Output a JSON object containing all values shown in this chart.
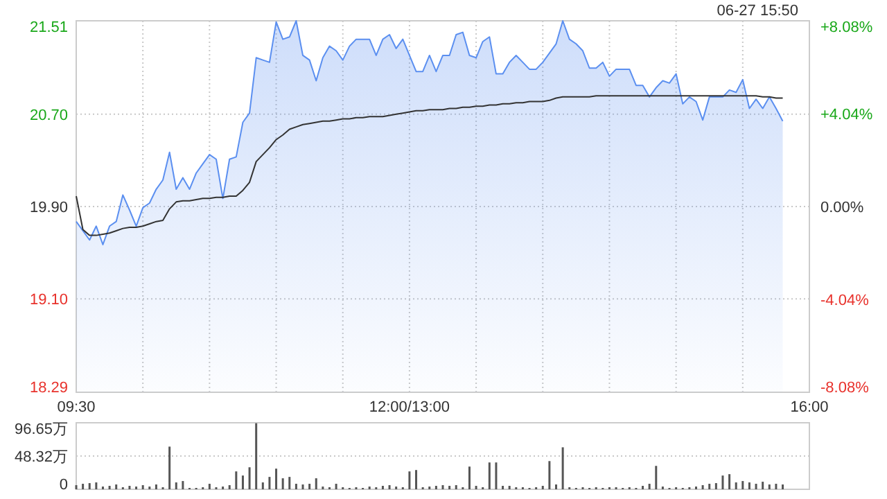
{
  "chart_data": [
    {
      "type": "area",
      "categories": [
        "09:30",
        null,
        null,
        null,
        null,
        null,
        null,
        null,
        null,
        null,
        null,
        null,
        null,
        null,
        null,
        null,
        null,
        null,
        null,
        null,
        null,
        null,
        null,
        null,
        null,
        null,
        null,
        null,
        null,
        null,
        null,
        null,
        null,
        null,
        null,
        null,
        null,
        null,
        null,
        null,
        null,
        null,
        null,
        null,
        null,
        null,
        null,
        null,
        null,
        null,
        "12:00/13:00",
        null,
        null,
        null,
        null,
        null,
        null,
        null,
        null,
        null,
        null,
        null,
        null,
        null,
        null,
        null,
        null,
        null,
        null,
        null,
        null,
        null,
        null,
        null,
        null,
        null,
        null,
        null,
        null,
        null,
        null,
        null,
        null,
        null,
        null,
        null,
        null,
        null,
        null,
        null,
        null,
        null,
        null,
        null,
        null,
        null,
        null,
        null,
        null,
        null,
        null,
        null,
        null,
        null,
        null,
        null,
        null,
        null,
        null,
        null,
        "16:00"
      ],
      "ylim": [
        18.29,
        21.51
      ],
      "yticks": [
        18.29,
        {
          "value": 19.1,
          "label": "19.10"
        },
        {
          "value": 19.9,
          "label": "19.90"
        },
        {
          "value": 20.7,
          "label": "20.70"
        },
        21.51
      ],
      "y2lim": [
        -8.08,
        8.08
      ],
      "y2ticks": [
        {
          "value": -8.08,
          "label": "-8.08%"
        },
        {
          "value": -4.04,
          "label": "-4.04%"
        },
        {
          "value": 0,
          "label": "0.00%"
        },
        {
          "value": 4.04,
          "label": "+4.04%"
        },
        {
          "value": 8.08,
          "label": "+8.08%"
        }
      ],
      "grid": true,
      "annotations": [
        "06-27 15:50"
      ],
      "series": [
        {
          "color": "#5b8ff0",
          "values": [
            19.77,
            19.69,
            19.61,
            19.73,
            19.57,
            19.73,
            19.77,
            20.0,
            19.87,
            19.73,
            19.89,
            19.93,
            20.05,
            20.13,
            20.37,
            20.05,
            20.15,
            20.05,
            20.19,
            20.27,
            20.35,
            20.31,
            19.97,
            20.31,
            20.33,
            20.63,
            20.71,
            21.19,
            21.17,
            21.15,
            21.5,
            21.35,
            21.37,
            21.51,
            21.21,
            21.17,
            20.99,
            21.19,
            21.29,
            21.25,
            21.17,
            21.29,
            21.35,
            21.35,
            21.35,
            21.21,
            21.35,
            21.39,
            21.27,
            21.35,
            21.21,
            21.07,
            21.07,
            21.21,
            21.07,
            21.21,
            21.21,
            21.39,
            21.41,
            21.21,
            21.19,
            21.33,
            21.37,
            21.05,
            21.05,
            21.15,
            21.21,
            21.15,
            21.09,
            21.09,
            21.15,
            21.23,
            21.31,
            21.51,
            21.35,
            21.31,
            21.25,
            21.1,
            21.1,
            21.15,
            21.03,
            21.09,
            21.09,
            21.09,
            20.95,
            20.95,
            20.85,
            20.93,
            20.99,
            20.97,
            21.05,
            20.79,
            20.85,
            20.81,
            20.65,
            20.85,
            20.85,
            20.85,
            20.91,
            20.89,
            21.0,
            20.75,
            20.83,
            20.75,
            20.85,
            20.75,
            20.64,
            null,
            null,
            null,
            null
          ]
        },
        {
          "type": "line",
          "color": "#333333",
          "values": [
            19.99,
            19.7,
            19.65,
            19.65,
            19.66,
            19.67,
            19.69,
            19.71,
            19.72,
            19.72,
            19.73,
            19.75,
            19.77,
            19.78,
            19.88,
            19.94,
            19.95,
            19.95,
            19.96,
            19.97,
            19.97,
            19.98,
            19.98,
            19.99,
            19.99,
            20.04,
            20.11,
            20.29,
            20.35,
            20.41,
            20.48,
            20.52,
            20.57,
            20.59,
            20.61,
            20.62,
            20.63,
            20.64,
            20.64,
            20.65,
            20.66,
            20.66,
            20.67,
            20.67,
            20.68,
            20.68,
            20.68,
            20.69,
            20.7,
            20.71,
            20.72,
            20.73,
            20.73,
            20.74,
            20.74,
            20.74,
            20.75,
            20.75,
            20.76,
            20.76,
            20.77,
            20.77,
            20.78,
            20.78,
            20.79,
            20.79,
            20.8,
            20.8,
            20.81,
            20.81,
            20.81,
            20.82,
            20.84,
            20.85,
            20.85,
            20.85,
            20.85,
            20.85,
            20.86,
            20.86,
            20.86,
            20.86,
            20.86,
            20.86,
            20.86,
            20.86,
            20.86,
            20.86,
            20.86,
            20.86,
            20.86,
            20.86,
            20.86,
            20.86,
            20.86,
            20.86,
            20.86,
            20.86,
            20.86,
            20.86,
            20.86,
            20.86,
            20.86,
            20.85,
            20.85,
            20.84,
            20.84,
            null,
            null,
            null,
            null
          ]
        }
      ]
    },
    {
      "type": "bar",
      "color": "#555555",
      "ylim": [
        0,
        96.65
      ],
      "categories": [
        null,
        null,
        null,
        null,
        null,
        null,
        null,
        null,
        null,
        null,
        null,
        null,
        null,
        null,
        null,
        null,
        null,
        null,
        null,
        null,
        null,
        null,
        null,
        null,
        null,
        null,
        null,
        null,
        null,
        null,
        null,
        null,
        null,
        null,
        null,
        null,
        null,
        null,
        null,
        null,
        null,
        null,
        null,
        null,
        null,
        null,
        null,
        null,
        null,
        null,
        null,
        null,
        null,
        null,
        null,
        null,
        null,
        null,
        null,
        null,
        null,
        null,
        null,
        null,
        null,
        null,
        null,
        null,
        null,
        null,
        null,
        null,
        null,
        null,
        null,
        null,
        null,
        null,
        null,
        null,
        null,
        null,
        null,
        null,
        null,
        null,
        null,
        null,
        null,
        null,
        null,
        null,
        null,
        null,
        null,
        null,
        null,
        null,
        null,
        null,
        null,
        null,
        null,
        null,
        null,
        null,
        null,
        null,
        null,
        null,
        null
      ],
      "yticks": [
        0,
        {
          "value": 48.32,
          "label": "48.32万"
        },
        {
          "value": 96.65,
          "label": "96.65万"
        }
      ],
      "grid": "y",
      "tick_labels": "y",
      "values": [
        6,
        8,
        9,
        10,
        4,
        5,
        7,
        3,
        5,
        4,
        6,
        4,
        7,
        3,
        62,
        10,
        12,
        2,
        2,
        3,
        8,
        3,
        4,
        6,
        26,
        20,
        32,
        96,
        10,
        18,
        30,
        16,
        18,
        8,
        7,
        8,
        16,
        4,
        3,
        8,
        3,
        2,
        3,
        2,
        4,
        3,
        5,
        6,
        4,
        3,
        26,
        28,
        3,
        4,
        5,
        6,
        5,
        6,
        3,
        33,
        5,
        3,
        39,
        39,
        5,
        5,
        3,
        3,
        2,
        3,
        5,
        41,
        7,
        61,
        3,
        2,
        3,
        2,
        3,
        2,
        3,
        3,
        2,
        3,
        2,
        5,
        8,
        34,
        4,
        2,
        3,
        2,
        3,
        4,
        6,
        8,
        9,
        20,
        22,
        10,
        12,
        10,
        8,
        11,
        7,
        8,
        7,
        null,
        null,
        null,
        null
      ]
    }
  ]
}
